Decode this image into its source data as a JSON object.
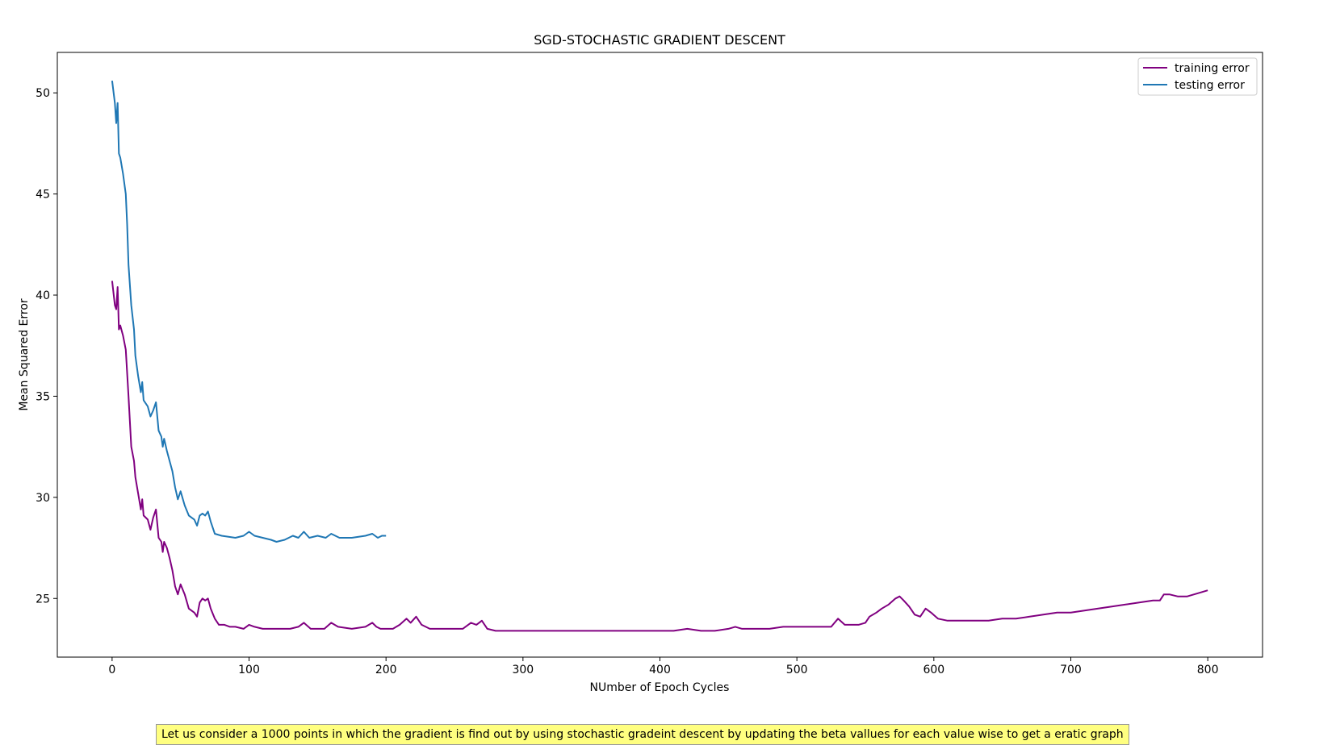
{
  "chart_data": {
    "type": "line",
    "title": "SGD-STOCHASTIC GRADIENT DESCENT",
    "xlabel": "NUmber of Epoch Cycles",
    "ylabel": "Mean Squared Error",
    "xlim": [
      -40,
      840
    ],
    "ylim": [
      22.1,
      52.0
    ],
    "xticks": [
      0,
      100,
      200,
      300,
      400,
      500,
      600,
      700,
      800
    ],
    "yticks": [
      25,
      30,
      35,
      40,
      45,
      50
    ],
    "grid": false,
    "legend_position": "top-right",
    "series": [
      {
        "name": "training error",
        "color": "#800080",
        "points": [
          [
            0,
            40.7
          ],
          [
            2,
            39.5
          ],
          [
            3,
            39.3
          ],
          [
            4,
            40.4
          ],
          [
            5,
            38.3
          ],
          [
            6,
            38.5
          ],
          [
            8,
            38.0
          ],
          [
            10,
            37.3
          ],
          [
            12,
            35.0
          ],
          [
            14,
            32.5
          ],
          [
            16,
            31.8
          ],
          [
            17,
            31.0
          ],
          [
            19,
            30.2
          ],
          [
            21,
            29.4
          ],
          [
            22,
            29.9
          ],
          [
            23,
            29.1
          ],
          [
            26,
            28.9
          ],
          [
            28,
            28.4
          ],
          [
            30,
            29.0
          ],
          [
            32,
            29.4
          ],
          [
            34,
            28.0
          ],
          [
            36,
            27.8
          ],
          [
            37,
            27.3
          ],
          [
            38,
            27.8
          ],
          [
            40,
            27.5
          ],
          [
            42,
            27.0
          ],
          [
            44,
            26.4
          ],
          [
            46,
            25.6
          ],
          [
            48,
            25.2
          ],
          [
            50,
            25.7
          ],
          [
            53,
            25.2
          ],
          [
            56,
            24.5
          ],
          [
            60,
            24.3
          ],
          [
            62,
            24.1
          ],
          [
            64,
            24.8
          ],
          [
            66,
            25.0
          ],
          [
            68,
            24.9
          ],
          [
            70,
            25.0
          ],
          [
            72,
            24.5
          ],
          [
            75,
            24.0
          ],
          [
            78,
            23.7
          ],
          [
            82,
            23.7
          ],
          [
            86,
            23.6
          ],
          [
            90,
            23.6
          ],
          [
            96,
            23.5
          ],
          [
            100,
            23.7
          ],
          [
            104,
            23.6
          ],
          [
            110,
            23.5
          ],
          [
            120,
            23.5
          ],
          [
            130,
            23.5
          ],
          [
            136,
            23.6
          ],
          [
            140,
            23.8
          ],
          [
            145,
            23.5
          ],
          [
            155,
            23.5
          ],
          [
            160,
            23.8
          ],
          [
            165,
            23.6
          ],
          [
            175,
            23.5
          ],
          [
            185,
            23.6
          ],
          [
            190,
            23.8
          ],
          [
            193,
            23.6
          ],
          [
            196,
            23.5
          ],
          [
            205,
            23.5
          ],
          [
            210,
            23.7
          ],
          [
            215,
            24.0
          ],
          [
            218,
            23.8
          ],
          [
            222,
            24.1
          ],
          [
            226,
            23.7
          ],
          [
            232,
            23.5
          ],
          [
            240,
            23.5
          ],
          [
            250,
            23.5
          ],
          [
            256,
            23.5
          ],
          [
            262,
            23.8
          ],
          [
            266,
            23.7
          ],
          [
            270,
            23.9
          ],
          [
            274,
            23.5
          ],
          [
            280,
            23.4
          ],
          [
            300,
            23.4
          ],
          [
            320,
            23.4
          ],
          [
            340,
            23.4
          ],
          [
            360,
            23.4
          ],
          [
            380,
            23.4
          ],
          [
            400,
            23.4
          ],
          [
            410,
            23.4
          ],
          [
            420,
            23.5
          ],
          [
            430,
            23.4
          ],
          [
            440,
            23.4
          ],
          [
            450,
            23.5
          ],
          [
            455,
            23.6
          ],
          [
            460,
            23.5
          ],
          [
            470,
            23.5
          ],
          [
            480,
            23.5
          ],
          [
            490,
            23.6
          ],
          [
            500,
            23.6
          ],
          [
            510,
            23.6
          ],
          [
            520,
            23.6
          ],
          [
            525,
            23.6
          ],
          [
            530,
            24.0
          ],
          [
            535,
            23.7
          ],
          [
            545,
            23.7
          ],
          [
            550,
            23.8
          ],
          [
            553,
            24.1
          ],
          [
            558,
            24.3
          ],
          [
            562,
            24.5
          ],
          [
            567,
            24.7
          ],
          [
            572,
            25.0
          ],
          [
            575,
            25.1
          ],
          [
            578,
            24.9
          ],
          [
            582,
            24.6
          ],
          [
            586,
            24.2
          ],
          [
            590,
            24.1
          ],
          [
            594,
            24.5
          ],
          [
            598,
            24.3
          ],
          [
            603,
            24.0
          ],
          [
            610,
            23.9
          ],
          [
            620,
            23.9
          ],
          [
            630,
            23.9
          ],
          [
            640,
            23.9
          ],
          [
            650,
            24.0
          ],
          [
            660,
            24.0
          ],
          [
            670,
            24.1
          ],
          [
            680,
            24.2
          ],
          [
            690,
            24.3
          ],
          [
            700,
            24.3
          ],
          [
            710,
            24.4
          ],
          [
            720,
            24.5
          ],
          [
            730,
            24.6
          ],
          [
            740,
            24.7
          ],
          [
            750,
            24.8
          ],
          [
            760,
            24.9
          ],
          [
            765,
            24.9
          ],
          [
            768,
            25.2
          ],
          [
            772,
            25.2
          ],
          [
            778,
            25.1
          ],
          [
            785,
            25.1
          ],
          [
            790,
            25.2
          ],
          [
            795,
            25.3
          ],
          [
            800,
            25.4
          ]
        ]
      },
      {
        "name": "testing error",
        "color": "#1f77b4",
        "points": [
          [
            0,
            50.6
          ],
          [
            2,
            49.5
          ],
          [
            3,
            48.5
          ],
          [
            4,
            49.5
          ],
          [
            5,
            47.0
          ],
          [
            6,
            46.8
          ],
          [
            8,
            46.0
          ],
          [
            10,
            45.0
          ],
          [
            11,
            43.5
          ],
          [
            12,
            41.5
          ],
          [
            14,
            39.5
          ],
          [
            16,
            38.3
          ],
          [
            17,
            37.0
          ],
          [
            19,
            36.0
          ],
          [
            21,
            35.2
          ],
          [
            22,
            35.7
          ],
          [
            23,
            34.8
          ],
          [
            26,
            34.5
          ],
          [
            28,
            34.0
          ],
          [
            30,
            34.3
          ],
          [
            32,
            34.7
          ],
          [
            34,
            33.3
          ],
          [
            36,
            33.0
          ],
          [
            37,
            32.5
          ],
          [
            38,
            32.9
          ],
          [
            40,
            32.3
          ],
          [
            42,
            31.8
          ],
          [
            44,
            31.3
          ],
          [
            46,
            30.5
          ],
          [
            48,
            29.9
          ],
          [
            50,
            30.3
          ],
          [
            53,
            29.6
          ],
          [
            56,
            29.1
          ],
          [
            60,
            28.9
          ],
          [
            62,
            28.6
          ],
          [
            64,
            29.1
          ],
          [
            66,
            29.2
          ],
          [
            68,
            29.1
          ],
          [
            70,
            29.3
          ],
          [
            72,
            28.8
          ],
          [
            75,
            28.2
          ],
          [
            80,
            28.1
          ],
          [
            90,
            28.0
          ],
          [
            96,
            28.1
          ],
          [
            100,
            28.3
          ],
          [
            104,
            28.1
          ],
          [
            110,
            28.0
          ],
          [
            116,
            27.9
          ],
          [
            120,
            27.8
          ],
          [
            126,
            27.9
          ],
          [
            132,
            28.1
          ],
          [
            136,
            28.0
          ],
          [
            140,
            28.3
          ],
          [
            144,
            28.0
          ],
          [
            150,
            28.1
          ],
          [
            156,
            28.0
          ],
          [
            160,
            28.2
          ],
          [
            166,
            28.0
          ],
          [
            175,
            28.0
          ],
          [
            185,
            28.1
          ],
          [
            190,
            28.2
          ],
          [
            194,
            28.0
          ],
          [
            197,
            28.1
          ],
          [
            200,
            28.1
          ]
        ]
      }
    ]
  },
  "footer_note": "Let us consider a 1000 points in which the gradient is find out by using stochastic gradeint descent by  updating the beta vallues for each value wise to get a eratic graph"
}
